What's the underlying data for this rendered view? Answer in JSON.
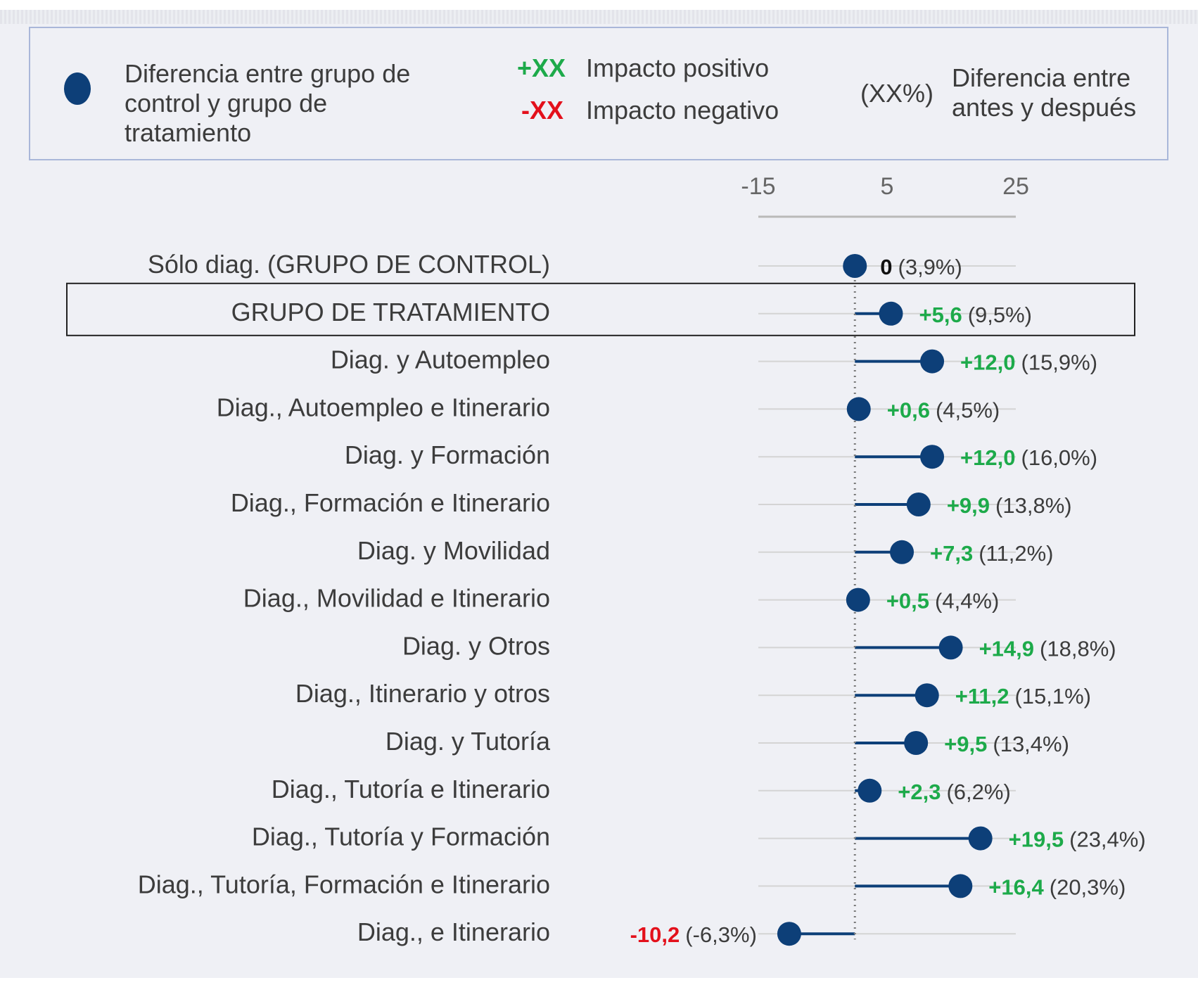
{
  "legend": {
    "dot_text": "Diferencia entre grupo de control y grupo de tratamiento",
    "dot_text_lines": [
      "Diferencia entre grupo de",
      "control y grupo de",
      "tratamiento"
    ],
    "positive_code": "+XX",
    "positive_label": "Impacto positivo",
    "negative_code": "-XX",
    "negative_label": "Impacto negativo",
    "pct_code": "(XX%)",
    "pct_label_lines": [
      "Diferencia entre",
      "antes y después"
    ]
  },
  "colors": {
    "dot": "#0d3f78",
    "positive": "#1daa4a",
    "negative": "#e3101b",
    "highlight_border": "#222222"
  },
  "chart_data": {
    "type": "scatter",
    "x_ticks": [
      "-15",
      "5",
      "25"
    ],
    "xlim": [
      -15,
      25
    ],
    "reference_line": 0,
    "highlighted_category": "GRUPO DE TRATAMIENTO",
    "categories": [
      "Sólo diag. (GRUPO DE CONTROL)",
      "GRUPO DE TRATAMIENTO",
      "Diag. y Autoempleo",
      "Diag., Autoempleo e Itinerario",
      "Diag. y Formación",
      "Diag., Formación e Itinerario",
      "Diag. y Movilidad",
      "Diag., Movilidad e Itinerario",
      "Diag. y Otros",
      "Diag., Itinerario y otros",
      "Diag. y Tutoría",
      "Diag., Tutoría e Itinerario",
      "Diag., Tutoría y Formación",
      "Diag., Tutoría, Formación e Itinerario",
      "Diag., e Itinerario"
    ],
    "values": [
      0,
      5.6,
      12.0,
      0.6,
      12.0,
      9.9,
      7.3,
      0.5,
      14.9,
      11.2,
      9.5,
      2.3,
      19.5,
      16.4,
      -10.2
    ],
    "value_labels": [
      "0",
      "+5,6",
      "+12,0",
      "+0,6",
      "+12,0",
      "+9,9",
      "+7,3",
      "+0,5",
      "+14,9",
      "+11,2",
      "+9,5",
      "+2,3",
      "+19,5",
      "+16,4",
      "-10,2"
    ],
    "pct_labels": [
      "(3,9%)",
      "(9,5%)",
      "(15,9%)",
      "(4,5%)",
      "(16,0%)",
      "(13,8%)",
      "(11,2%)",
      "(4,4%)",
      "(18,8%)",
      "(15,1%)",
      "(13,4%)",
      "(6,2%)",
      "(23,4%)",
      "(20,3%)",
      "(-6,3%)"
    ]
  }
}
